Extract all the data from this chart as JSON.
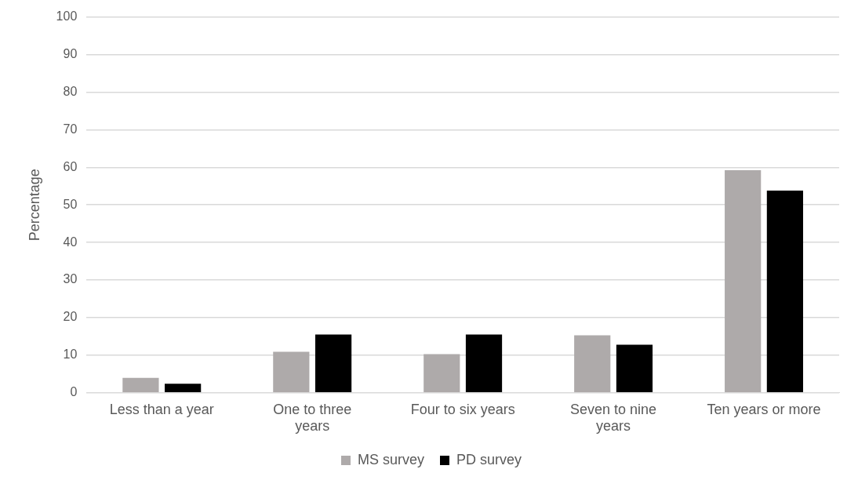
{
  "chart_data": {
    "type": "bar",
    "ylabel": "Percentage",
    "categories": [
      "Less than a year",
      "One to three years",
      "Four to six years",
      "Seven to nine years",
      "Ten years or more"
    ],
    "series": [
      {
        "name": "MS survey",
        "color": "#aeaaaa",
        "values": [
          4.0,
          10.9,
          10.3,
          15.3,
          59.2
        ]
      },
      {
        "name": "PD survey",
        "color": "#000000",
        "values": [
          2.4,
          15.5,
          15.5,
          12.8,
          53.8
        ]
      }
    ],
    "ylim": [
      0,
      100
    ],
    "yticks": [
      0,
      10,
      20,
      30,
      40,
      50,
      60,
      70,
      80,
      90,
      100
    ],
    "grid": "y",
    "legend": "bottom"
  }
}
